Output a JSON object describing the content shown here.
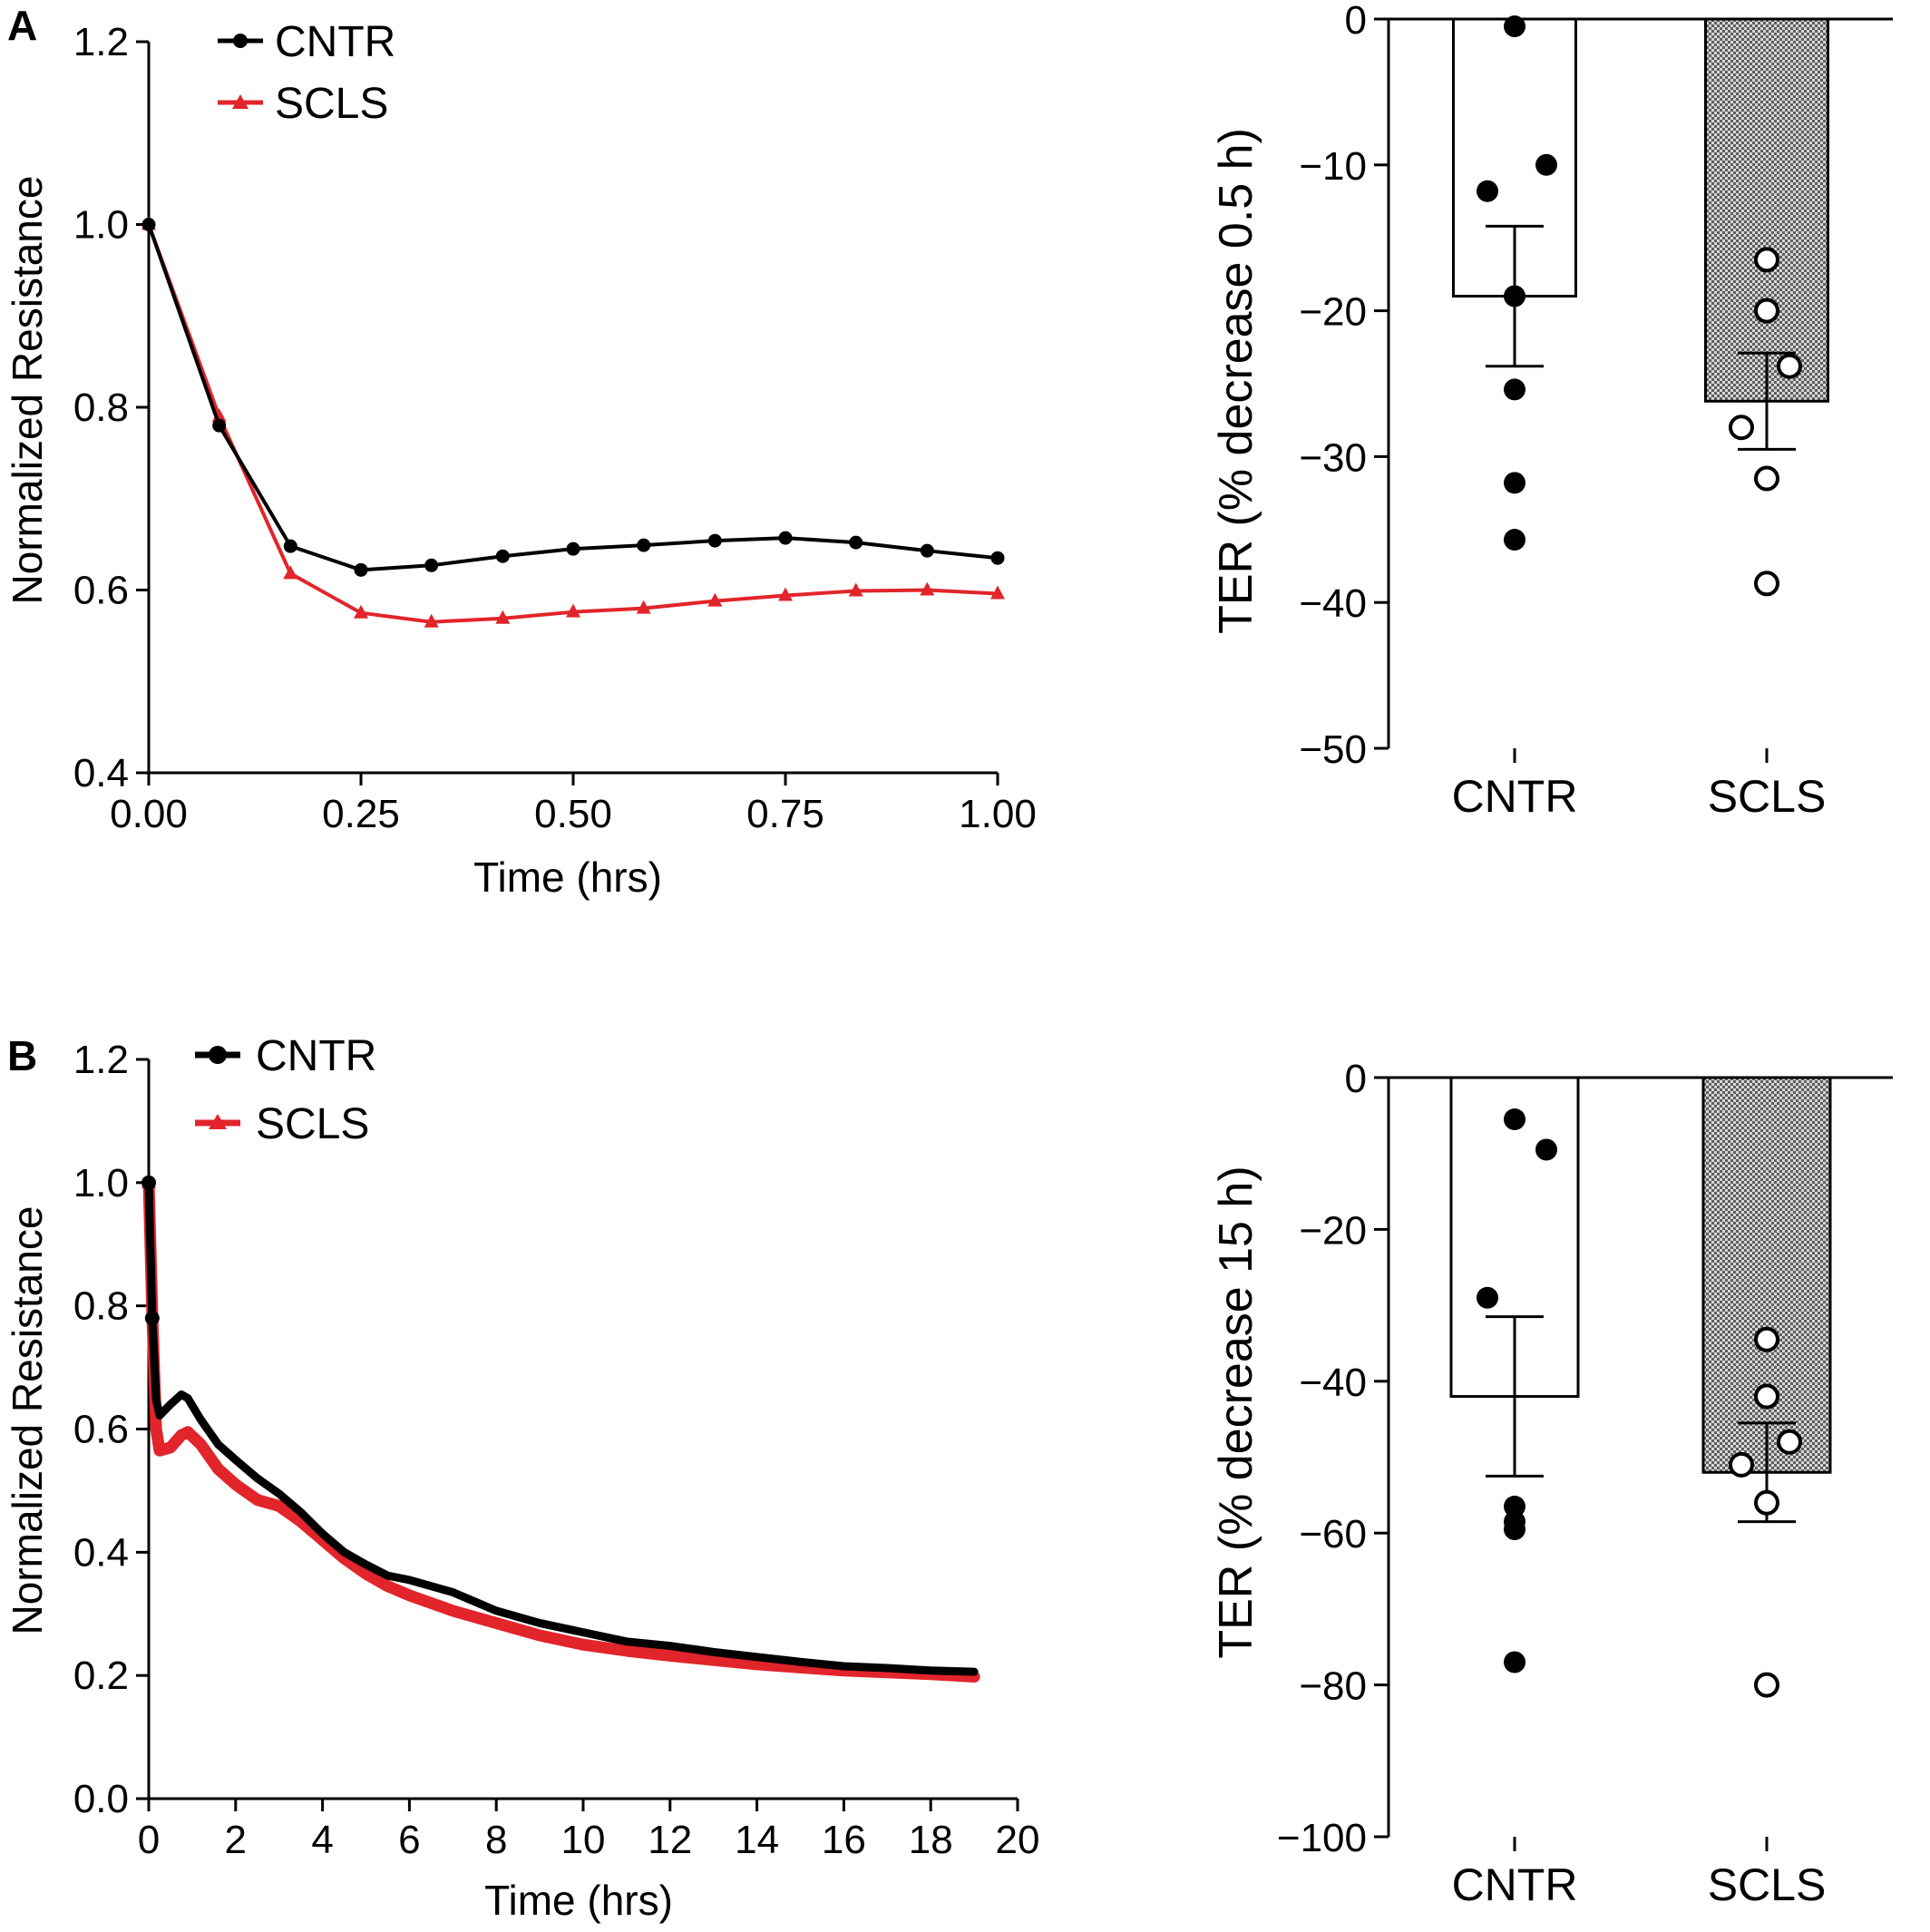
{
  "colors": {
    "cntr": "#000000",
    "scls": "#e2242b",
    "axis": "#000000",
    "hatch": "#9a9a9a"
  },
  "chart_data": [
    {
      "id": "A-line",
      "panel_label": "A",
      "type": "line",
      "xlabel": "Time (hrs)",
      "ylabel": "Normalized Resistance",
      "xlim": [
        0,
        1
      ],
      "ylim": [
        0.4,
        1.2
      ],
      "xticks": [
        0,
        0.25,
        0.5,
        0.75,
        1.0
      ],
      "xtick_labels": [
        "0.00",
        "0.25",
        "0.50",
        "0.75",
        "1.00"
      ],
      "yticks": [
        0.4,
        0.6,
        0.8,
        1.0,
        1.2
      ],
      "ytick_labels": [
        "0.4",
        "0.6",
        "0.8",
        "1.0",
        "1.2"
      ],
      "legend": "top-left",
      "series": [
        {
          "name": "CNTR",
          "marker": "circle",
          "x": [
            0,
            0.083,
            0.167,
            0.25,
            0.333,
            0.417,
            0.5,
            0.583,
            0.667,
            0.75,
            0.833,
            0.917,
            1.0
          ],
          "y": [
            1.0,
            0.78,
            0.648,
            0.622,
            0.627,
            0.637,
            0.645,
            0.649,
            0.654,
            0.657,
            0.652,
            0.643,
            0.635
          ]
        },
        {
          "name": "SCLS",
          "marker": "triangle",
          "x": [
            0,
            0.083,
            0.167,
            0.25,
            0.333,
            0.417,
            0.5,
            0.583,
            0.667,
            0.75,
            0.833,
            0.917,
            1.0
          ],
          "y": [
            1.0,
            0.79,
            0.618,
            0.575,
            0.565,
            0.569,
            0.576,
            0.58,
            0.588,
            0.594,
            0.599,
            0.6,
            0.596
          ]
        }
      ]
    },
    {
      "id": "A-bar",
      "type": "bar",
      "ylabel": "TER (% decrease 0.5 h)",
      "ylim": [
        -50,
        0
      ],
      "yticks": [
        0,
        -10,
        -20,
        -30,
        -40,
        -50
      ],
      "ytick_labels": [
        "0",
        "−10",
        "−20",
        "−30",
        "−40",
        "−50"
      ],
      "categories": [
        "CNTR",
        "SCLS"
      ],
      "values": [
        -19.0,
        -26.2
      ],
      "sem": [
        4.8,
        3.3
      ],
      "points": [
        [
          -0.5,
          -10.0,
          -11.8,
          -19.0,
          -25.4,
          -31.8,
          -35.7
        ],
        [
          -16.5,
          -20.0,
          -23.8,
          -28.0,
          -31.5,
          -38.7
        ]
      ]
    },
    {
      "id": "B-line",
      "panel_label": "B",
      "type": "line",
      "xlabel": "Time (hrs)",
      "ylabel": "Normalized Resistance",
      "xlim": [
        0,
        20
      ],
      "ylim": [
        0.0,
        1.2
      ],
      "xticks": [
        0,
        2,
        4,
        6,
        8,
        10,
        12,
        14,
        16,
        18,
        20
      ],
      "xtick_labels": [
        "0",
        "2",
        "4",
        "6",
        "8",
        "10",
        "12",
        "14",
        "16",
        "18",
        "20"
      ],
      "yticks": [
        0.0,
        0.2,
        0.4,
        0.6,
        0.8,
        1.0,
        1.2
      ],
      "ytick_labels": [
        "0.0",
        "0.2",
        "0.4",
        "0.6",
        "0.8",
        "1.0",
        "1.2"
      ],
      "legend": "top-left",
      "series": [
        {
          "name": "CNTR",
          "marker": "circle",
          "x": [
            0,
            0.08,
            0.17,
            0.25,
            0.5,
            0.75,
            0.9,
            1.2,
            1.6,
            2.0,
            2.5,
            3.0,
            3.5,
            4.0,
            4.5,
            5.0,
            5.5,
            6.0,
            7.0,
            8.0,
            9.0,
            10.0,
            11.0,
            12.0,
            13.0,
            14.0,
            15.0,
            16.0,
            17.0,
            18.0,
            19.0
          ],
          "y": [
            1.0,
            0.78,
            0.648,
            0.622,
            0.64,
            0.656,
            0.65,
            0.615,
            0.575,
            0.55,
            0.52,
            0.495,
            0.465,
            0.43,
            0.4,
            0.38,
            0.362,
            0.355,
            0.335,
            0.305,
            0.285,
            0.27,
            0.255,
            0.248,
            0.238,
            0.23,
            0.222,
            0.215,
            0.212,
            0.208,
            0.206
          ]
        },
        {
          "name": "SCLS",
          "marker": "triangle",
          "x": [
            0,
            0.08,
            0.17,
            0.25,
            0.5,
            0.75,
            0.9,
            1.2,
            1.6,
            2.0,
            2.5,
            3.0,
            3.5,
            4.0,
            4.5,
            5.0,
            5.5,
            6.0,
            7.0,
            8.0,
            9.0,
            10.0,
            11.0,
            12.0,
            13.0,
            14.0,
            15.0,
            16.0,
            17.0,
            18.0,
            19.0
          ],
          "y": [
            1.0,
            0.79,
            0.6,
            0.565,
            0.57,
            0.59,
            0.595,
            0.575,
            0.535,
            0.51,
            0.485,
            0.475,
            0.45,
            0.42,
            0.39,
            0.365,
            0.345,
            0.33,
            0.305,
            0.285,
            0.265,
            0.25,
            0.24,
            0.232,
            0.225,
            0.218,
            0.213,
            0.208,
            0.205,
            0.202,
            0.198
          ]
        }
      ]
    },
    {
      "id": "B-bar",
      "type": "bar",
      "ylabel": "TER (% decrease 15 h)",
      "ylim": [
        -100,
        0
      ],
      "yticks": [
        0,
        -20,
        -40,
        -60,
        -80,
        -100
      ],
      "ytick_labels": [
        "0",
        "−20",
        "−40",
        "−60",
        "−80",
        "−100"
      ],
      "categories": [
        "CNTR",
        "SCLS"
      ],
      "values": [
        -42.0,
        -52.0
      ],
      "sem": [
        10.5,
        6.5
      ],
      "points": [
        [
          -5.5,
          -9.5,
          -29.0,
          -56.5,
          -58.5,
          -59.5,
          -77.0
        ],
        [
          -34.5,
          -42.0,
          -48.0,
          -51.0,
          -56.0,
          -80.0
        ]
      ]
    }
  ]
}
